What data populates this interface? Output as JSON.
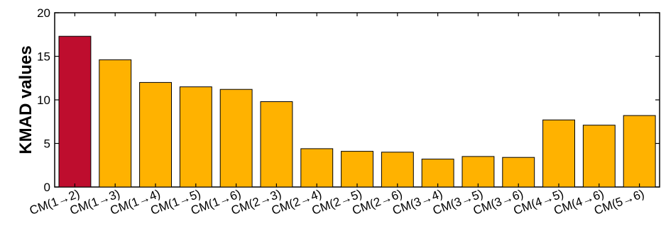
{
  "chart_data": {
    "type": "bar",
    "title": "",
    "xlabel": "",
    "ylabel": "KMAD values",
    "ylim": [
      0,
      20
    ],
    "yticks": [
      0,
      5,
      10,
      15,
      20
    ],
    "grid": false,
    "categories": [
      "CM(1→2)",
      "CM(1→3)",
      "CM(1→4)",
      "CM(1→5)",
      "CM(1→6)",
      "CM(2→3)",
      "CM(2→4)",
      "CM(2→5)",
      "CM(2→6)",
      "CM(3→4)",
      "CM(3→5)",
      "CM(3→6)",
      "CM(4→5)",
      "CM(4→6)",
      "CM(5→6)"
    ],
    "values": [
      17.3,
      14.6,
      12.0,
      11.5,
      11.2,
      9.8,
      4.4,
      4.1,
      4.0,
      3.2,
      3.5,
      3.4,
      7.7,
      7.1,
      8.2
    ],
    "highlight_index": 0,
    "colors": {
      "highlight": "#be0d2e",
      "default": "#ffb200",
      "edge": "#000000"
    }
  }
}
